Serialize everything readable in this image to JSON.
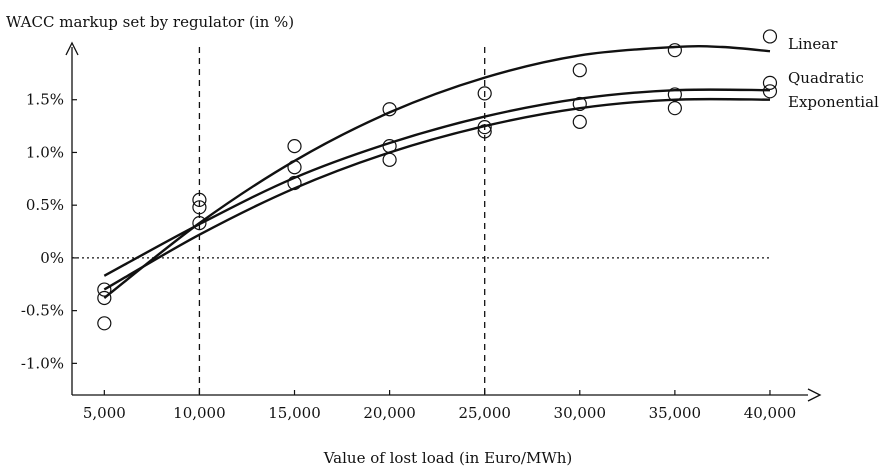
{
  "chart_data": {
    "type": "scatter",
    "ylabel": "WACC markup set by regulator (in %)",
    "xlabel": "Value of lost load (in Euro/MWh)",
    "x_ticks": [
      5000,
      10000,
      15000,
      20000,
      25000,
      30000,
      35000,
      40000
    ],
    "x_tick_labels": [
      "5,000",
      "10,000",
      "15,000",
      "20,000",
      "25,000",
      "30,000",
      "35,000",
      "40,000"
    ],
    "y_ticks": [
      -1.0,
      -0.5,
      0,
      0.5,
      1.0,
      1.5
    ],
    "y_tick_labels": [
      "-1.0%",
      "-0.5%",
      "0%",
      "0.5%",
      "1.0%",
      "1.5%"
    ],
    "xlim": [
      3300,
      42000
    ],
    "ylim": [
      -1.3,
      2.0
    ],
    "reference_lines": {
      "vertical_x": [
        10000,
        25000
      ],
      "horizontal_y": [
        0
      ]
    },
    "series": [
      {
        "name": "Linear",
        "points": [
          [
            5000,
            -0.3
          ],
          [
            10000,
            0.55
          ],
          [
            15000,
            1.06
          ],
          [
            20000,
            1.41
          ],
          [
            25000,
            1.56
          ],
          [
            30000,
            1.78
          ],
          [
            35000,
            1.97
          ],
          [
            40000,
            2.1
          ]
        ],
        "fit": [
          [
            5000,
            -0.38
          ],
          [
            10000,
            0.33
          ],
          [
            15000,
            0.92
          ],
          [
            20000,
            1.38
          ],
          [
            25000,
            1.71
          ],
          [
            30000,
            1.92
          ],
          [
            35000,
            2.0
          ],
          [
            37500,
            2.0
          ],
          [
            40000,
            1.96
          ]
        ]
      },
      {
        "name": "Quadratic",
        "points": [
          [
            5000,
            -0.38
          ],
          [
            10000,
            0.48
          ],
          [
            15000,
            0.86
          ],
          [
            20000,
            1.06
          ],
          [
            25000,
            1.24
          ],
          [
            30000,
            1.46
          ],
          [
            35000,
            1.55
          ],
          [
            40000,
            1.66
          ]
        ],
        "fit": [
          [
            5000,
            -0.17
          ],
          [
            10000,
            0.32
          ],
          [
            15000,
            0.76
          ],
          [
            20000,
            1.09
          ],
          [
            25000,
            1.34
          ],
          [
            30000,
            1.51
          ],
          [
            35000,
            1.59
          ],
          [
            40000,
            1.59
          ]
        ]
      },
      {
        "name": "Exponential",
        "points": [
          [
            5000,
            -0.62
          ],
          [
            10000,
            0.33
          ],
          [
            15000,
            0.71
          ],
          [
            20000,
            0.93
          ],
          [
            25000,
            1.2
          ],
          [
            30000,
            1.29
          ],
          [
            35000,
            1.42
          ],
          [
            40000,
            1.58
          ]
        ],
        "fit": [
          [
            5000,
            -0.3
          ],
          [
            10000,
            0.22
          ],
          [
            15000,
            0.66
          ],
          [
            20000,
            1.0
          ],
          [
            25000,
            1.25
          ],
          [
            30000,
            1.42
          ],
          [
            35000,
            1.5
          ],
          [
            40000,
            1.5
          ]
        ]
      }
    ]
  }
}
